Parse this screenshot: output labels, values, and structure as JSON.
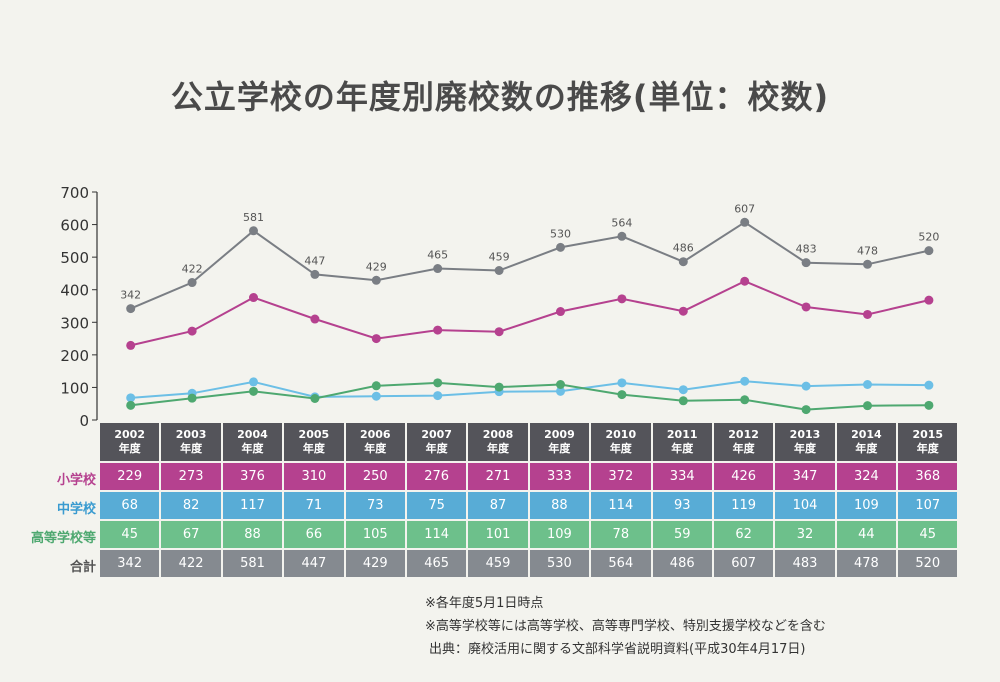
{
  "title": "公立学校の年度別廃校数の推移(単位：校数)",
  "chart_data": {
    "type": "line",
    "title": "公立学校の年度別廃校数の推移(単位：校数)",
    "xlabel": "",
    "ylabel": "",
    "ylim": [
      0,
      700
    ],
    "yticks": [
      0,
      100,
      200,
      300,
      400,
      500,
      600,
      700
    ],
    "grid": false,
    "categories": [
      "2002年度",
      "2003年度",
      "2004年度",
      "2005年度",
      "2006年度",
      "2007年度",
      "2008年度",
      "2009年度",
      "2010年度",
      "2011年度",
      "2012年度",
      "2013年度",
      "2014年度",
      "2015年度"
    ],
    "years": [
      "2002",
      "2003",
      "2004",
      "2005",
      "2006",
      "2007",
      "2008",
      "2009",
      "2010",
      "2011",
      "2012",
      "2013",
      "2014",
      "2015"
    ],
    "year_suffix": "年度",
    "series": [
      {
        "name": "小学校",
        "color": "#b5418f",
        "values": [
          229,
          273,
          376,
          310,
          250,
          276,
          271,
          333,
          372,
          334,
          426,
          347,
          324,
          368
        ],
        "data_labels": false
      },
      {
        "name": "中学校",
        "color": "#6cbfe6",
        "values": [
          68,
          82,
          117,
          71,
          73,
          75,
          87,
          88,
          114,
          93,
          119,
          104,
          109,
          107
        ],
        "data_labels": false
      },
      {
        "name": "高等学校等",
        "color": "#4ea870",
        "values": [
          45,
          67,
          88,
          66,
          105,
          114,
          101,
          109,
          78,
          59,
          62,
          32,
          44,
          45
        ],
        "data_labels": false
      },
      {
        "name": "合計",
        "color": "#7a7e84",
        "values": [
          342,
          422,
          581,
          447,
          429,
          465,
          459,
          530,
          564,
          486,
          607,
          483,
          478,
          520
        ],
        "data_labels": true
      }
    ]
  },
  "table": {
    "header_color": "#54545a",
    "rows": [
      {
        "label": "小学校",
        "label_color": "#b5418f",
        "cell_color": "#b5418f",
        "values": [
          "229",
          "273",
          "376",
          "310",
          "250",
          "276",
          "271",
          "333",
          "372",
          "334",
          "426",
          "347",
          "324",
          "368"
        ]
      },
      {
        "label": "中学校",
        "label_color": "#3a9bd0",
        "cell_color": "#58acd6",
        "values": [
          "68",
          "82",
          "117",
          "71",
          "73",
          "75",
          "87",
          "88",
          "114",
          "93",
          "119",
          "104",
          "109",
          "107"
        ]
      },
      {
        "label": "高等学校等",
        "label_color": "#4ea870",
        "cell_color": "#6dc08b",
        "values": [
          "45",
          "67",
          "88",
          "66",
          "105",
          "114",
          "101",
          "109",
          "78",
          "59",
          "62",
          "32",
          "44",
          "45"
        ]
      },
      {
        "label": "合計",
        "label_color": "#555555",
        "cell_color": "#858a90",
        "values": [
          "342",
          "422",
          "581",
          "447",
          "429",
          "465",
          "459",
          "530",
          "564",
          "486",
          "607",
          "483",
          "478",
          "520"
        ]
      }
    ]
  },
  "notes": {
    "note1": "※各年度5月1日時点",
    "note2": "※高等学校等には高等学校、高等専門学校、特別支援学校などを含む",
    "source": "出典：廃校活用に関する文部科学省説明資料(平成30年4月17日)"
  }
}
